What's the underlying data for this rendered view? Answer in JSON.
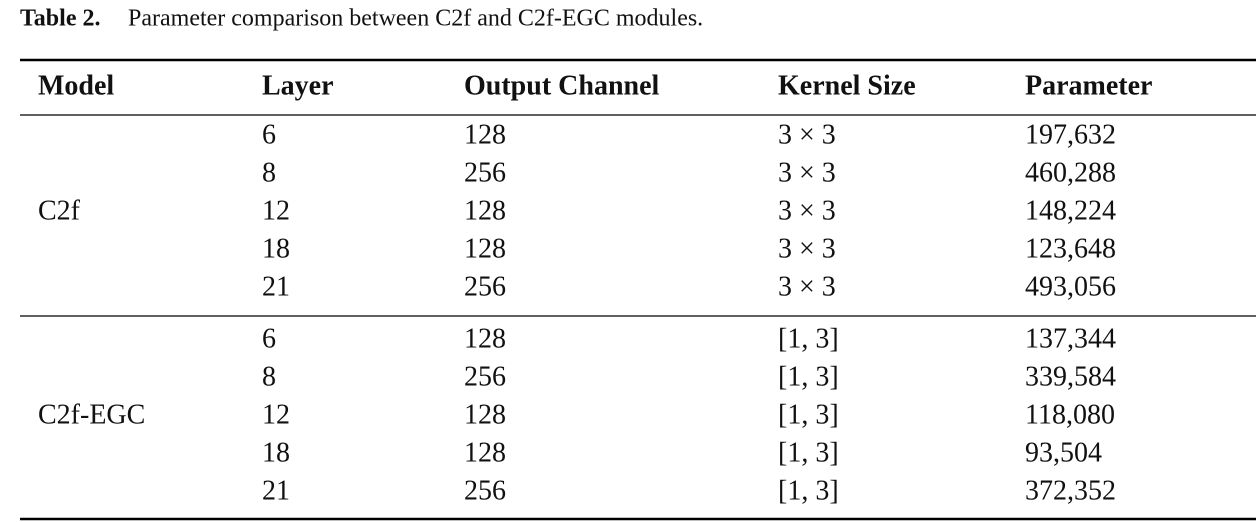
{
  "caption": {
    "label": "Table 2.",
    "text": "Parameter comparison between C2f and C2f-EGC modules."
  },
  "table": {
    "headers": [
      "Model",
      "Layer",
      "Output Channel",
      "Kernel Size",
      "Parameter"
    ],
    "groups": [
      {
        "model": "C2f",
        "rows": [
          [
            "6",
            "128",
            "3 × 3",
            "197,632"
          ],
          [
            "8",
            "256",
            "3 × 3",
            "460,288"
          ],
          [
            "12",
            "128",
            "3 × 3",
            "148,224"
          ],
          [
            "18",
            "128",
            "3 × 3",
            "123,648"
          ],
          [
            "21",
            "256",
            "3 × 3",
            "493,056"
          ]
        ]
      },
      {
        "model": "C2f-EGC",
        "rows": [
          [
            "6",
            "128",
            "[1, 3]",
            "137,344"
          ],
          [
            "8",
            "256",
            "[1, 3]",
            "339,584"
          ],
          [
            "12",
            "128",
            "[1, 3]",
            "118,080"
          ],
          [
            "18",
            "128",
            "[1, 3]",
            "93,504"
          ],
          [
            "21",
            "256",
            "[1, 3]",
            "372,352"
          ]
        ]
      }
    ]
  }
}
